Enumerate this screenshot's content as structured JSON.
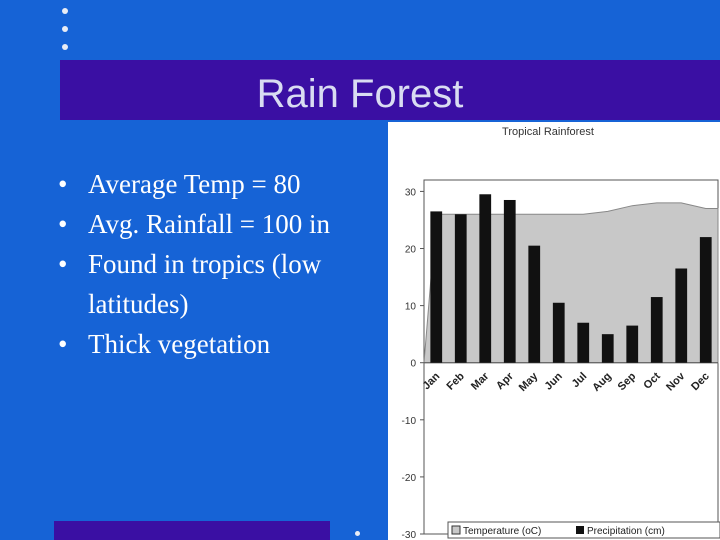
{
  "slide": {
    "title": "Rain Forest",
    "bullets": [
      "Average Temp = 80",
      "Avg. Rainfall = 100 in",
      "Found in tropics (low latitudes)",
      "Thick vegetation"
    ],
    "colors": {
      "background": "#1663d6",
      "title_bar": "#3a0fa3",
      "bullet_text": "#ffffff"
    }
  },
  "chart_data": {
    "type": "bar",
    "title": "Tropical Rainforest",
    "categories": [
      "Jan",
      "Feb",
      "Mar",
      "Apr",
      "May",
      "Jun",
      "Jul",
      "Aug",
      "Sep",
      "Oct",
      "Nov",
      "Dec"
    ],
    "series": [
      {
        "name": "Temperature (oC)",
        "kind": "area",
        "color": "#c8c8c8",
        "values": [
          26,
          26,
          26,
          26,
          26,
          26,
          26,
          26.5,
          27.5,
          28,
          28,
          27
        ]
      },
      {
        "name": "Precipitation (cm)",
        "kind": "bar",
        "color": "#111111",
        "values": [
          26.5,
          26,
          29.5,
          28.5,
          20.5,
          10.5,
          7,
          5,
          6.5,
          11.5,
          16.5,
          22
        ]
      }
    ],
    "yticks": [
      30,
      20,
      10,
      0,
      -10,
      -20,
      -30
    ],
    "ylim": [
      -30,
      32
    ],
    "legend": [
      "Temperature (oC)",
      "Precipitation (cm)"
    ],
    "legend_position": "bottom"
  }
}
